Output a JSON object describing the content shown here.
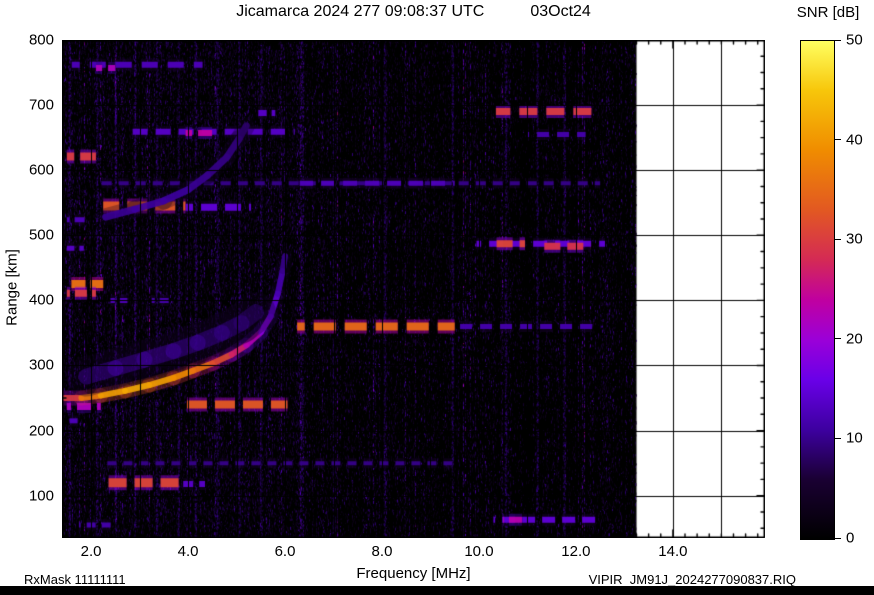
{
  "header": {
    "title": "Jicamarca 2024 277 09:08:37 UTC",
    "date": "03Oct24"
  },
  "colorbar": {
    "label": "SNR [dB]",
    "min": 0,
    "max": 50,
    "ticks": [
      {
        "v": 0,
        "label": "0"
      },
      {
        "v": 10,
        "label": "10"
      },
      {
        "v": 20,
        "label": "20"
      },
      {
        "v": 30,
        "label": "30"
      },
      {
        "v": 40,
        "label": "40"
      },
      {
        "v": 50,
        "label": "50"
      }
    ],
    "stops": [
      {
        "v": 0,
        "c": "#000000"
      },
      {
        "v": 6,
        "c": "#1a0033"
      },
      {
        "v": 11,
        "c": "#3d00a0"
      },
      {
        "v": 16,
        "c": "#6a00e8"
      },
      {
        "v": 20,
        "c": "#9b00d8"
      },
      {
        "v": 24,
        "c": "#c000a0"
      },
      {
        "v": 28,
        "c": "#d42a55"
      },
      {
        "v": 33,
        "c": "#e25822"
      },
      {
        "v": 39,
        "c": "#f08c00"
      },
      {
        "v": 45,
        "c": "#f7c60a"
      },
      {
        "v": 50,
        "c": "#ffff60"
      }
    ]
  },
  "axes": {
    "x": {
      "label": "Frequency [MHz]",
      "min": 1.4,
      "max": 15.9,
      "tick_step": 2,
      "minor_step": 0.25,
      "grid_step": 1,
      "ticks": [
        {
          "v": 2,
          "label": "2.0"
        },
        {
          "v": 4,
          "label": "4.0"
        },
        {
          "v": 6,
          "label": "6.0"
        },
        {
          "v": 8,
          "label": "8.0"
        },
        {
          "v": 10,
          "label": "10.0"
        },
        {
          "v": 12,
          "label": "12.0"
        },
        {
          "v": 14,
          "label": "14.0"
        }
      ]
    },
    "y": {
      "label": "Range [km]",
      "min": 35,
      "max": 800,
      "tick_step": 100,
      "minor_step": 25,
      "grid_step": 100,
      "ticks": [
        {
          "v": 100,
          "label": "100"
        },
        {
          "v": 200,
          "label": "200"
        },
        {
          "v": 300,
          "label": "300"
        },
        {
          "v": 400,
          "label": "400"
        },
        {
          "v": 500,
          "label": "500"
        },
        {
          "v": 600,
          "label": "600"
        },
        {
          "v": 700,
          "label": "700"
        },
        {
          "v": 800,
          "label": "800"
        }
      ]
    }
  },
  "footer": {
    "left": "RxMask 11111111",
    "right": "VIPIR  JM91J_2024277090837.RIQ"
  },
  "chart_data": {
    "type": "heatmap",
    "subtype": "ionogram",
    "title": "Jicamarca 2024 277 09:08:37 UTC 03Oct24",
    "xlabel": "Frequency [MHz]",
    "ylabel": "Range [km]",
    "colorbar_label": "SNR [dB]",
    "units": {
      "frequency": "MHz",
      "range": "km",
      "snr": "dB"
    },
    "x_range": [
      1.4,
      15.9
    ],
    "y_range": [
      35,
      800
    ],
    "snr_range": [
      0,
      50
    ],
    "data_extent": {
      "f_min": 1.4,
      "f_max": 13.25
    },
    "background_snr": 0,
    "noise": {
      "seed": 12,
      "streaks": [
        {
          "f": 1.55,
          "snr": 12
        },
        {
          "f": 2.12,
          "snr": 11
        },
        {
          "f": 2.5,
          "snr": 12
        },
        {
          "f": 2.9,
          "snr": 12
        },
        {
          "f": 3.35,
          "snr": 11
        },
        {
          "f": 3.8,
          "snr": 10
        },
        {
          "f": 4.15,
          "snr": 11
        },
        {
          "f": 4.6,
          "snr": 10
        },
        {
          "f": 5.05,
          "snr": 11
        },
        {
          "f": 5.5,
          "snr": 10
        },
        {
          "f": 6.35,
          "snr": 13,
          "w": 3
        },
        {
          "f": 7.0,
          "snr": 9
        },
        {
          "f": 8.05,
          "snr": 9
        },
        {
          "f": 9.45,
          "snr": 10
        },
        {
          "f": 10.55,
          "snr": 11
        },
        {
          "f": 11.2,
          "snr": 10
        },
        {
          "f": 11.75,
          "snr": 10
        }
      ]
    },
    "traces": [
      {
        "name": "F-layer main trace",
        "width": 6,
        "points": [
          [
            1.45,
            250,
            26
          ],
          [
            1.8,
            250,
            34
          ],
          [
            2.2,
            254,
            40
          ],
          [
            2.7,
            261,
            42
          ],
          [
            3.2,
            270,
            42
          ],
          [
            3.7,
            281,
            40
          ],
          [
            4.1,
            292,
            38
          ],
          [
            4.5,
            303,
            34
          ],
          [
            4.9,
            317,
            29
          ],
          [
            5.2,
            331,
            25
          ],
          [
            5.5,
            351,
            20
          ],
          [
            5.7,
            375,
            16
          ],
          [
            5.85,
            410,
            13
          ],
          [
            5.95,
            445,
            11
          ],
          [
            6.0,
            468,
            9
          ]
        ]
      },
      {
        "name": "spread echo above main trace",
        "width": 16,
        "alpha": 0.45,
        "points": [
          [
            1.9,
            283,
            11
          ],
          [
            2.5,
            296,
            12
          ],
          [
            3.1,
            309,
            12
          ],
          [
            3.7,
            322,
            12
          ],
          [
            4.2,
            335,
            11
          ],
          [
            4.7,
            350,
            11
          ],
          [
            5.1,
            365,
            10
          ],
          [
            5.4,
            382,
            9
          ]
        ]
      },
      {
        "name": "second-hop trace",
        "width": 7,
        "points": [
          [
            2.3,
            528,
            10
          ],
          [
            2.9,
            540,
            11
          ],
          [
            3.5,
            553,
            11
          ],
          [
            4.0,
            570,
            11
          ],
          [
            4.4,
            592,
            10
          ],
          [
            4.8,
            620,
            10
          ],
          [
            5.05,
            648,
            9
          ],
          [
            5.2,
            668,
            8
          ]
        ]
      }
    ],
    "bands": [
      {
        "km": 762,
        "f1": 1.6,
        "f2": 4.3,
        "snr": 13,
        "h": 6,
        "dash": [
          16,
          10
        ]
      },
      {
        "km": 757,
        "f1": 2.1,
        "f2": 2.5,
        "snr": 22,
        "h": 6,
        "dash": [
          14,
          6
        ]
      },
      {
        "km": 690,
        "f1": 10.35,
        "f2": 12.4,
        "snr": 30,
        "h": 7,
        "dash": [
          18,
          9
        ]
      },
      {
        "km": 688,
        "f1": 5.45,
        "f2": 5.8,
        "snr": 14,
        "h": 6,
        "dash": [
          12,
          5
        ]
      },
      {
        "km": 659,
        "f1": 2.85,
        "f2": 6.2,
        "snr": 14,
        "h": 6,
        "dash": [
          15,
          8
        ]
      },
      {
        "km": 657,
        "f1": 3.95,
        "f2": 4.5,
        "snr": 24,
        "h": 6,
        "dash": [
          14,
          6
        ]
      },
      {
        "km": 655,
        "f1": 11.0,
        "f2": 12.2,
        "snr": 12,
        "h": 5,
        "dash": [
          12,
          8
        ]
      },
      {
        "km": 621,
        "f1": 1.5,
        "f2": 2.1,
        "snr": 30,
        "h": 8,
        "dash": [
          16,
          6
        ]
      },
      {
        "km": 580,
        "f1": 2.2,
        "f2": 12.5,
        "snr": 10,
        "h": 4,
        "dash": [
          10,
          7
        ]
      },
      {
        "km": 580,
        "f1": 6.3,
        "f2": 9.5,
        "snr": 13,
        "h": 5,
        "dash": [
          14,
          8
        ]
      },
      {
        "km": 545,
        "f1": 2.25,
        "f2": 3.95,
        "snr": 33,
        "h": 9,
        "dash": [
          20,
          8
        ]
      },
      {
        "km": 543,
        "f1": 3.95,
        "f2": 5.3,
        "snr": 15,
        "h": 7,
        "dash": [
          16,
          8
        ]
      },
      {
        "km": 524,
        "f1": 1.5,
        "f2": 1.9,
        "snr": 13,
        "h": 5,
        "dash": [
          10,
          5
        ]
      },
      {
        "km": 487,
        "f1": 9.95,
        "f2": 12.6,
        "snr": 15,
        "h": 6,
        "dash": [
          14,
          8
        ]
      },
      {
        "km": 487,
        "f1": 10.3,
        "f2": 10.95,
        "snr": 31,
        "h": 7,
        "dash": [
          16,
          7
        ]
      },
      {
        "km": 483,
        "f1": 11.3,
        "f2": 12.3,
        "snr": 29,
        "h": 7,
        "dash": [
          16,
          7
        ]
      },
      {
        "km": 480,
        "f1": 1.5,
        "f2": 1.85,
        "snr": 14,
        "h": 5,
        "dash": [
          10,
          5
        ]
      },
      {
        "km": 425,
        "f1": 1.5,
        "f2": 2.25,
        "snr": 36,
        "h": 8,
        "dash": [
          14,
          5
        ]
      },
      {
        "km": 411,
        "f1": 1.5,
        "f2": 2.1,
        "snr": 30,
        "h": 7,
        "dash": [
          12,
          5
        ]
      },
      {
        "km": 400,
        "f1": 2.4,
        "f2": 2.75,
        "snr": 13,
        "h": 5,
        "dash": [
          10,
          5
        ]
      },
      {
        "km": 400,
        "f1": 3.25,
        "f2": 3.6,
        "snr": 12,
        "h": 5,
        "dash": [
          10,
          5
        ]
      },
      {
        "km": 360,
        "f1": 6.25,
        "f2": 9.5,
        "snr": 35,
        "h": 8,
        "dash": [
          22,
          9
        ]
      },
      {
        "km": 360,
        "f1": 9.5,
        "f2": 12.5,
        "snr": 12,
        "h": 5,
        "dash": [
          12,
          8
        ]
      },
      {
        "km": 240,
        "f1": 3.9,
        "f2": 6.05,
        "snr": 33,
        "h": 8,
        "dash": [
          20,
          8
        ]
      },
      {
        "km": 237,
        "f1": 1.5,
        "f2": 2.2,
        "snr": 22,
        "h": 7,
        "dash": [
          14,
          6
        ]
      },
      {
        "km": 215,
        "f1": 1.5,
        "f2": 1.75,
        "snr": 13,
        "h": 5,
        "dash": [
          8,
          4
        ]
      },
      {
        "km": 150,
        "f1": 2.2,
        "f2": 9.6,
        "snr": 10,
        "h": 4,
        "dash": [
          9,
          7
        ]
      },
      {
        "km": 120,
        "f1": 2.25,
        "f2": 3.9,
        "snr": 31,
        "h": 9,
        "dash": [
          18,
          8
        ]
      },
      {
        "km": 118,
        "f1": 3.9,
        "f2": 4.35,
        "snr": 14,
        "h": 6,
        "dash": [
          12,
          6
        ]
      },
      {
        "km": 63,
        "f1": 10.3,
        "f2": 12.5,
        "snr": 15,
        "h": 6,
        "dash": [
          13,
          7
        ]
      },
      {
        "km": 63,
        "f1": 10.5,
        "f2": 10.95,
        "snr": 23,
        "h": 6,
        "dash": [
          13,
          5
        ]
      },
      {
        "km": 55,
        "f1": 1.75,
        "f2": 2.5,
        "snr": 12,
        "h": 5,
        "dash": [
          9,
          6
        ]
      }
    ]
  }
}
